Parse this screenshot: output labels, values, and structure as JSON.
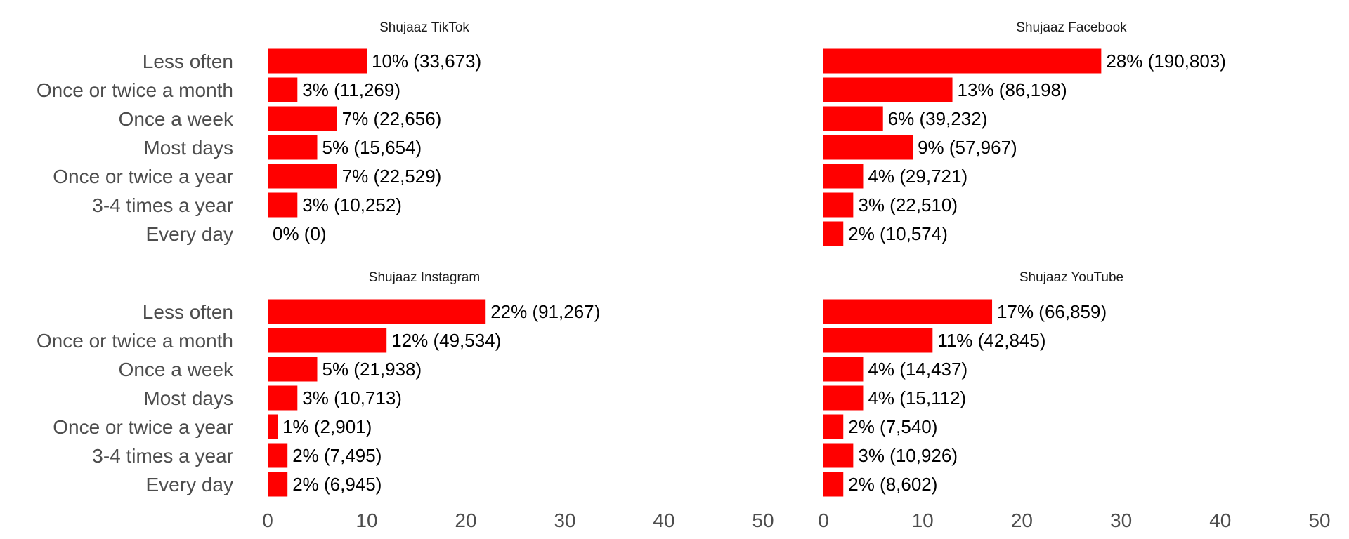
{
  "chart_data": {
    "type": "bar",
    "orientation": "horizontal",
    "facets": "2x2",
    "bar_color": "#ff0000",
    "grid": false,
    "legend": "none",
    "categories": [
      "Less often",
      "Once or twice a month",
      "Once a week",
      "Most days",
      "Once or twice a year",
      "3-4 times a year",
      "Every day"
    ],
    "xlim": [
      0,
      50
    ],
    "xticks": [
      "0",
      "10",
      "20",
      "30",
      "40",
      "50"
    ],
    "panels": [
      {
        "title": "Shujaaz TikTok",
        "values": [
          10,
          3,
          7,
          5,
          7,
          3,
          0
        ],
        "labels": [
          "10% (33,673)",
          "3% (11,269)",
          "7% (22,656)",
          "5% (15,654)",
          "7% (22,529)",
          "3% (10,252)",
          "0% (0)"
        ]
      },
      {
        "title": "Shujaaz Facebook",
        "values": [
          28,
          13,
          6,
          9,
          4,
          3,
          2
        ],
        "labels": [
          "28% (190,803)",
          "13% (86,198)",
          "6% (39,232)",
          "9% (57,967)",
          "4% (29,721)",
          "3% (22,510)",
          "2% (10,574)"
        ]
      },
      {
        "title": "Shujaaz Instagram",
        "values": [
          22,
          12,
          5,
          3,
          1,
          2,
          2
        ],
        "labels": [
          "22% (91,267)",
          "12% (49,534)",
          "5% (21,938)",
          "3% (10,713)",
          "1% (2,901)",
          "2% (7,495)",
          "2% (6,945)"
        ]
      },
      {
        "title": "Shujaaz YouTube",
        "values": [
          17,
          11,
          4,
          4,
          2,
          3,
          2
        ],
        "labels": [
          "17% (66,859)",
          "11% (42,845)",
          "4% (14,437)",
          "4% (15,112)",
          "2% (7,540)",
          "3% (10,926)",
          "2% (8,602)"
        ]
      }
    ]
  }
}
